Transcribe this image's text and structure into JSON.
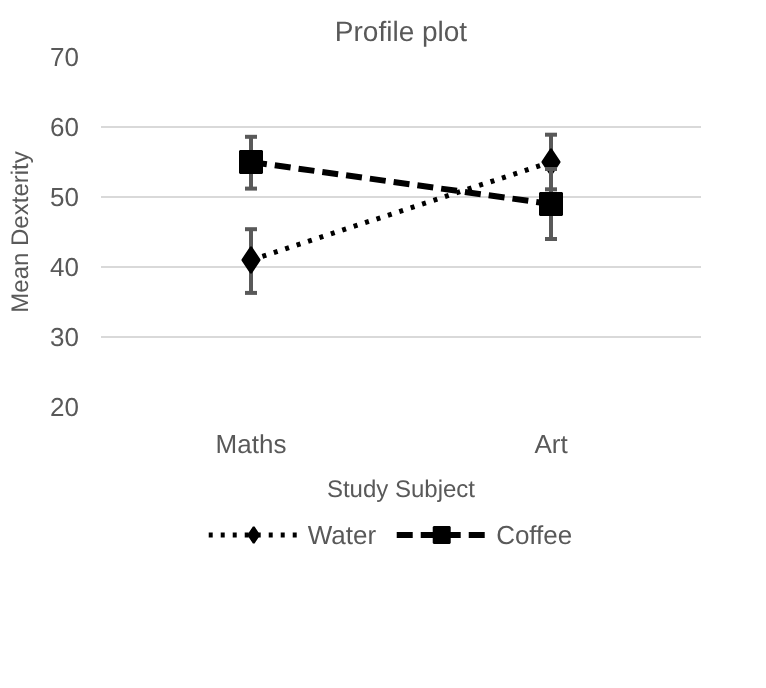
{
  "chart_data": {
    "type": "line",
    "title": "Profile plot",
    "xlabel": "Study Subject",
    "ylabel": "Mean Dexterity",
    "categories": [
      "Maths",
      "Art"
    ],
    "series": [
      {
        "name": "Water",
        "color": "#000000",
        "values": [
          41,
          55
        ],
        "errors": [
          [
            36.3,
            45.4
          ],
          [
            51.1,
            58.9
          ]
        ],
        "marker": "diamond",
        "line_style": "dotted"
      },
      {
        "name": "Coffee",
        "color": "#000000",
        "values": [
          55,
          49
        ],
        "errors": [
          [
            51.2,
            58.6
          ],
          [
            44,
            54
          ]
        ],
        "marker": "square",
        "line_style": "dashed"
      }
    ],
    "ylim": [
      20,
      70
    ],
    "yticks": [
      20,
      30,
      40,
      50,
      60,
      70
    ],
    "grid": "y",
    "legend": "bottom"
  }
}
